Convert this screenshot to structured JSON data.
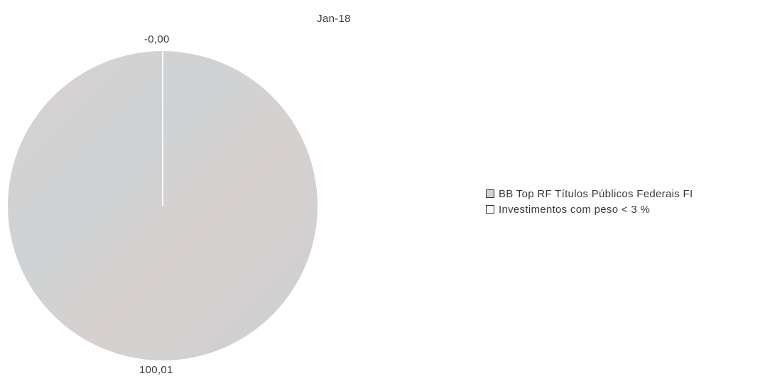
{
  "chart_data": {
    "type": "pie",
    "title": "Jan-18",
    "slices": [
      {
        "label": "BB Top RF Títulos Públicos Federais FI",
        "value": 100.01,
        "display": "100,01",
        "color": "#d3d1d0"
      },
      {
        "label": "Investimentos com peso < 3 %",
        "value": 0.0,
        "display": "-0,00",
        "color": "#ffffff"
      }
    ],
    "legend_position": "right",
    "grid": false
  }
}
